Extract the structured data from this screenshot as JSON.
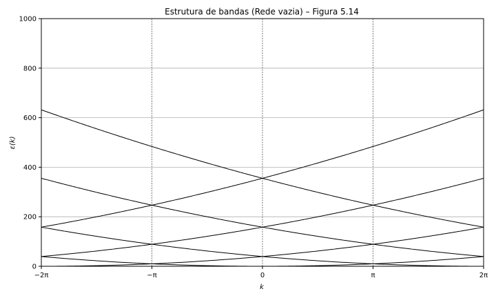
{
  "chart_data": {
    "type": "line",
    "title": "Estrutura de bandas (Rede vazia) – Figura 5.14",
    "xlabel": "k",
    "ylabel": "ε(k)",
    "xlim": [
      -6.2832,
      6.2832
    ],
    "ylim": [
      0,
      1000
    ],
    "grid": true,
    "x_ticks": [
      {
        "value": -6.2832,
        "label": "−2π"
      },
      {
        "value": -3.1416,
        "label": "−π"
      },
      {
        "value": 0,
        "label": "0"
      },
      {
        "value": 3.1416,
        "label": "π"
      },
      {
        "value": 6.2832,
        "label": "2π"
      }
    ],
    "y_ticks": [
      {
        "value": 0,
        "label": "0"
      },
      {
        "value": 200,
        "label": "200"
      },
      {
        "value": 400,
        "label": "400"
      },
      {
        "value": 600,
        "label": "600"
      },
      {
        "value": 800,
        "label": "800"
      },
      {
        "value": 1000,
        "label": "1000"
      }
    ],
    "series": [
      {
        "shift": 0
      },
      {
        "shift": 6.2832
      },
      {
        "shift": -6.2832
      },
      {
        "shift": 12.5664
      },
      {
        "shift": -12.5664
      },
      {
        "shift": 18.8496
      },
      {
        "shift": -18.8496
      }
    ],
    "series_formula": "ε(k) = (k + shift)^2",
    "line_color": "#000000",
    "grid_color": "#b0b0b0",
    "brillouin_boundary_color": "#555555"
  }
}
